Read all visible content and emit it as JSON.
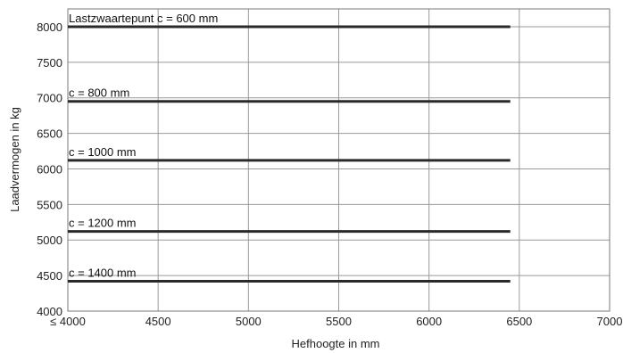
{
  "chart_data": {
    "type": "line",
    "xlabel": "Hefhoogte in mm",
    "ylabel": "Laadvermogen in kg",
    "xlim": [
      4000,
      7000
    ],
    "ylim": [
      4000,
      8250
    ],
    "grid": true,
    "x_ticks": [
      {
        "value": 4000,
        "label": "≤ 4000"
      },
      {
        "value": 4500,
        "label": "4500"
      },
      {
        "value": 5000,
        "label": "5000"
      },
      {
        "value": 5500,
        "label": "5500"
      },
      {
        "value": 6000,
        "label": "6000"
      },
      {
        "value": 6500,
        "label": "6500"
      },
      {
        "value": 7000,
        "label": "7000"
      }
    ],
    "y_ticks": [
      {
        "value": 4000,
        "label": "4000"
      },
      {
        "value": 4500,
        "label": "4500"
      },
      {
        "value": 5000,
        "label": "5000"
      },
      {
        "value": 5500,
        "label": "5500"
      },
      {
        "value": 6000,
        "label": "6000"
      },
      {
        "value": 6500,
        "label": "6500"
      },
      {
        "value": 7000,
        "label": "7000"
      },
      {
        "value": 7500,
        "label": "7500"
      },
      {
        "value": 8000,
        "label": "8000"
      }
    ],
    "series": [
      {
        "name": "Lastzwaartepunt c = 600 mm",
        "x": [
          4000,
          6450
        ],
        "y": [
          8000,
          8000
        ]
      },
      {
        "name": "c = 800 mm",
        "x": [
          4000,
          6450
        ],
        "y": [
          6950,
          6950
        ]
      },
      {
        "name": "c = 1000 mm",
        "x": [
          4000,
          6450
        ],
        "y": [
          6120,
          6120
        ]
      },
      {
        "name": "c = 1200 mm",
        "x": [
          4000,
          6450
        ],
        "y": [
          5120,
          5120
        ]
      },
      {
        "name": "c = 1400 mm",
        "x": [
          4000,
          6450
        ],
        "y": [
          4420,
          4420
        ]
      }
    ]
  }
}
